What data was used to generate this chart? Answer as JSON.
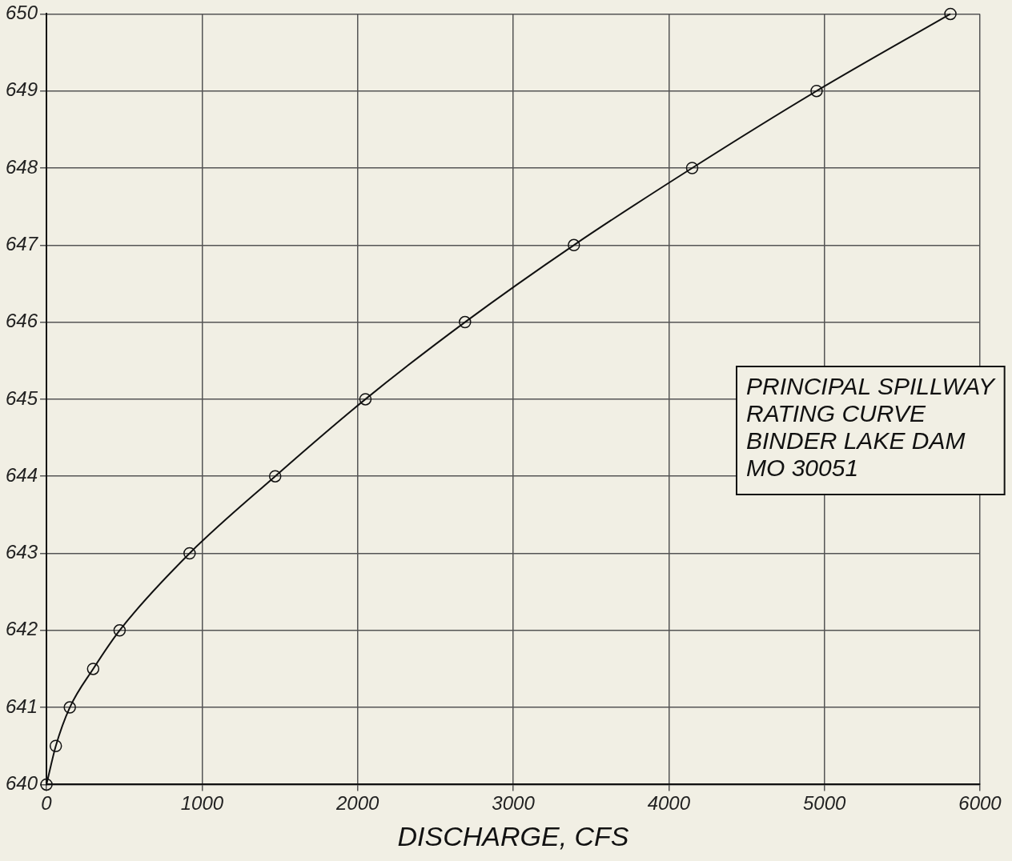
{
  "chart_data": {
    "type": "line",
    "xlabel": "DISCHARGE, CFS",
    "x": [
      0,
      60,
      150,
      300,
      470,
      920,
      1470,
      2050,
      2690,
      3390,
      4150,
      4950,
      5810
    ],
    "series": [
      {
        "color": "#111111",
        "values": [
          640,
          640.5,
          641,
          641.5,
          642,
          643,
          644,
          645,
          646,
          647,
          648,
          649,
          650
        ]
      }
    ],
    "xlim": [
      0,
      6000
    ],
    "xticks": [
      0,
      1000,
      2000,
      3000,
      4000,
      5000,
      6000
    ],
    "ylim": [
      640,
      650
    ],
    "yticks": [
      640,
      641,
      642,
      643,
      644,
      645,
      646,
      647,
      648,
      649,
      650
    ],
    "grid": true,
    "legend": false,
    "marker": "circle",
    "line_style": "solid",
    "annotations": [
      "PRINCIPAL SPILLWAY",
      "RATING CURVE",
      "BINDER LAKE DAM",
      "MO 30051"
    ]
  }
}
